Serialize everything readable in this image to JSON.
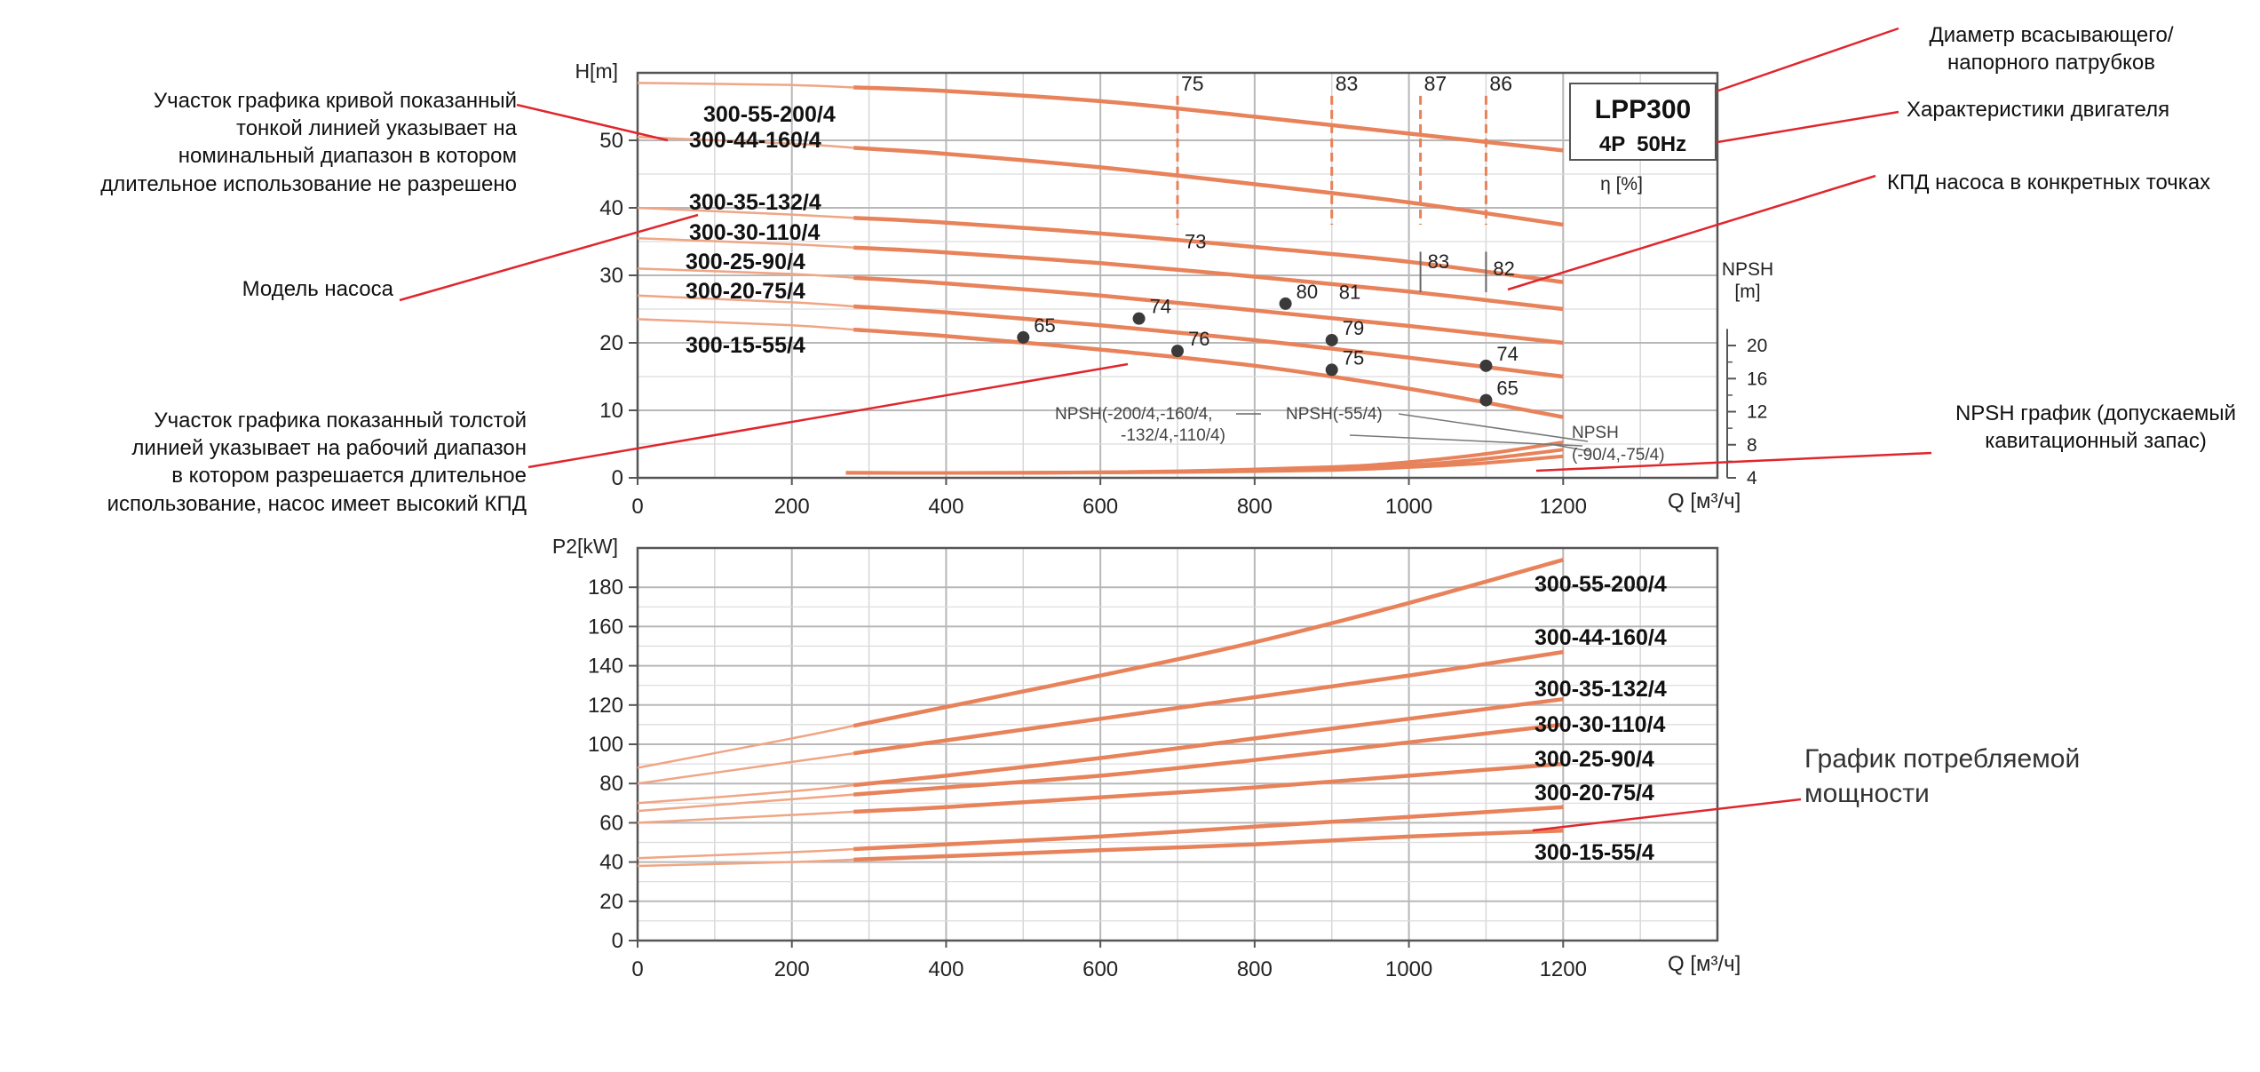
{
  "annotations": {
    "thin_line": [
      "Участок графика кривой показанный",
      "тонкой линией указывает на",
      "номинальный диапазон в котором",
      "длительное использование не разрешено"
    ],
    "model": "Модель насоса",
    "thick_line": [
      "Участок графика показанный толстой",
      "линией указывает на рабочий диапазон",
      "в котором разрешается длительное",
      "использование, насос имеет высокий КПД"
    ],
    "diameter": [
      "Диаметр всасывающего/",
      "напорного патрубков"
    ],
    "motor": "Характеристики двигателя",
    "efficiency": "КПД насоса в конкретных точках",
    "npsh": [
      "NPSH график (допускаемый",
      "кавитационный запас)"
    ],
    "power_graph": [
      "График потребляемой",
      "мощности"
    ]
  },
  "model_box": {
    "series_name": "LPP300",
    "motor": "4P  50Hz"
  },
  "colors": {
    "curve": "#e8825a",
    "curve_thin": "#f0a585",
    "dash": "#e8825a",
    "grid": "#c9c9c9",
    "frame": "#555555",
    "annotation_line": "#e0262d",
    "dot": "#3a3a3a"
  },
  "chart_data": [
    {
      "type": "line",
      "ylabel": "H[m]",
      "xlabel": "Q [м³/ч]",
      "xlim": [
        0,
        1400
      ],
      "ylim": [
        0,
        60
      ],
      "xticks": [
        "0",
        "200",
        "400",
        "600",
        "800",
        "1000",
        "1200"
      ],
      "yticks": [
        "0",
        "10",
        "20",
        "30",
        "40",
        "50"
      ],
      "grid": true,
      "series": [
        {
          "name": "300-55-200/4",
          "x": [
            0,
            200,
            400,
            600,
            800,
            1000,
            1200
          ],
          "y": [
            58.5,
            58.2,
            57.3,
            55.8,
            53.5,
            51.0,
            48.5
          ]
        },
        {
          "name": "300-44-160/4",
          "x": [
            0,
            200,
            400,
            600,
            800,
            1000,
            1200
          ],
          "y": [
            50.5,
            49.5,
            48.0,
            46.0,
            43.5,
            40.8,
            37.5
          ]
        },
        {
          "name": "300-35-132/4",
          "x": [
            0,
            200,
            400,
            600,
            800,
            1000,
            1200
          ],
          "y": [
            40.0,
            39.0,
            37.8,
            36.2,
            34.2,
            32.0,
            29.0
          ]
        },
        {
          "name": "300-30-110/4",
          "x": [
            0,
            200,
            400,
            600,
            800,
            1000,
            1200
          ],
          "y": [
            35.5,
            34.6,
            33.4,
            31.8,
            29.8,
            27.6,
            25.0
          ]
        },
        {
          "name": "300-25-90/4",
          "x": [
            0,
            200,
            400,
            600,
            800,
            1000,
            1200
          ],
          "y": [
            31.0,
            30.2,
            28.8,
            27.0,
            24.8,
            22.5,
            20.0
          ]
        },
        {
          "name": "300-20-75/4",
          "x": [
            0,
            200,
            400,
            600,
            800,
            1000,
            1200
          ],
          "y": [
            27.0,
            26.0,
            24.5,
            22.6,
            20.4,
            17.8,
            15.0
          ]
        },
        {
          "name": "300-15-55/4",
          "x": [
            0,
            200,
            400,
            600,
            800,
            1000,
            1200
          ],
          "y": [
            23.5,
            22.6,
            21.0,
            19.0,
            16.6,
            13.2,
            9.0
          ]
        }
      ],
      "efficiency_lines": [
        {
          "label": "75",
          "x": 700
        },
        {
          "label": "83",
          "x": 900
        },
        {
          "label": "87",
          "x": 1015
        },
        {
          "label": "86",
          "x": 1100
        }
      ],
      "efficiency_label": "η [%]",
      "efficiency_points": [
        {
          "label": "73",
          "x": 700,
          "y": 33.5,
          "dot": false
        },
        {
          "label": "83",
          "x": 1015,
          "y": 30.5,
          "dot": false
        },
        {
          "label": "82",
          "x": 1100,
          "y": 29.5,
          "dot": false
        },
        {
          "label": "80",
          "x": 840,
          "y": 25.8,
          "dot": true
        },
        {
          "label": "81",
          "x": 900,
          "y": 26.0,
          "dot": false
        },
        {
          "label": "74",
          "x": 650,
          "y": 23.6,
          "dot": true
        },
        {
          "label": "65",
          "x": 500,
          "y": 20.8,
          "dot": true
        },
        {
          "label": "76",
          "x": 700,
          "y": 18.8,
          "dot": true
        },
        {
          "label": "79",
          "x": 900,
          "y": 20.4,
          "dot": true
        },
        {
          "label": "75",
          "x": 900,
          "y": 16.0,
          "dot": true
        },
        {
          "label": "74",
          "x": 1100,
          "y": 16.6,
          "dot": true
        },
        {
          "label": "65",
          "x": 1100,
          "y": 11.5,
          "dot": true
        }
      ],
      "npsh": {
        "ylabel": [
          "NPSH",
          "[m]"
        ],
        "yticks": [
          "4",
          "8",
          "12",
          "16",
          "20"
        ],
        "ylim": [
          4,
          24
        ],
        "labels": [
          "NPSH(-200/4,-160/4,",
          "-132/4,-110/4)",
          "NPSH(-55/4)",
          "NPSH",
          "(-90/4,-75/4)"
        ],
        "curves": [
          {
            "x": [
              270,
              500,
              700,
              900,
              1000,
              1100,
              1200
            ],
            "y": [
              4.6,
              4.6,
              4.8,
              5.3,
              5.9,
              6.9,
              8.3
            ]
          },
          {
            "x": [
              270,
              500,
              700,
              900,
              1000,
              1100,
              1200
            ],
            "y": [
              4.6,
              4.6,
              4.75,
              5.1,
              5.5,
              6.3,
              7.4
            ]
          },
          {
            "x": [
              270,
              500,
              700,
              900,
              1000,
              1100,
              1200
            ],
            "y": [
              4.6,
              4.6,
              4.7,
              4.95,
              5.3,
              5.8,
              6.6
            ]
          }
        ]
      }
    },
    {
      "type": "line",
      "ylabel": "P2[kW]",
      "xlabel": "Q [м³/ч]",
      "xlim": [
        0,
        1400
      ],
      "ylim": [
        0,
        200
      ],
      "xticks": [
        "0",
        "200",
        "400",
        "600",
        "800",
        "1000",
        "1200"
      ],
      "yticks": [
        "0",
        "20",
        "40",
        "60",
        "80",
        "100",
        "120",
        "140",
        "160",
        "180"
      ],
      "grid": true,
      "series": [
        {
          "name": "300-55-200/4",
          "x": [
            0,
            200,
            400,
            600,
            800,
            1000,
            1200
          ],
          "y": [
            88,
            103,
            119,
            135,
            152,
            172,
            194
          ]
        },
        {
          "name": "300-44-160/4",
          "x": [
            0,
            200,
            400,
            600,
            800,
            1000,
            1200
          ],
          "y": [
            80,
            91,
            102,
            113,
            124,
            135,
            147
          ]
        },
        {
          "name": "300-35-132/4",
          "x": [
            0,
            200,
            400,
            600,
            800,
            1000,
            1200
          ],
          "y": [
            70,
            76,
            84,
            93,
            103,
            113,
            123
          ]
        },
        {
          "name": "300-30-110/4",
          "x": [
            0,
            200,
            400,
            600,
            800,
            1000,
            1200
          ],
          "y": [
            66,
            72,
            78,
            84,
            92,
            101,
            110
          ]
        },
        {
          "name": "300-25-90/4",
          "x": [
            0,
            200,
            400,
            600,
            800,
            1000,
            1200
          ],
          "y": [
            60,
            64,
            68,
            73,
            78,
            84,
            90
          ]
        },
        {
          "name": "300-20-75/4",
          "x": [
            0,
            200,
            400,
            600,
            800,
            1000,
            1200
          ],
          "y": [
            42,
            45,
            49,
            53,
            58,
            63,
            68
          ]
        },
        {
          "name": "300-15-55/4",
          "x": [
            0,
            200,
            400,
            600,
            800,
            1000,
            1200
          ],
          "y": [
            38,
            40,
            43,
            46,
            49,
            53,
            56
          ]
        }
      ]
    }
  ]
}
